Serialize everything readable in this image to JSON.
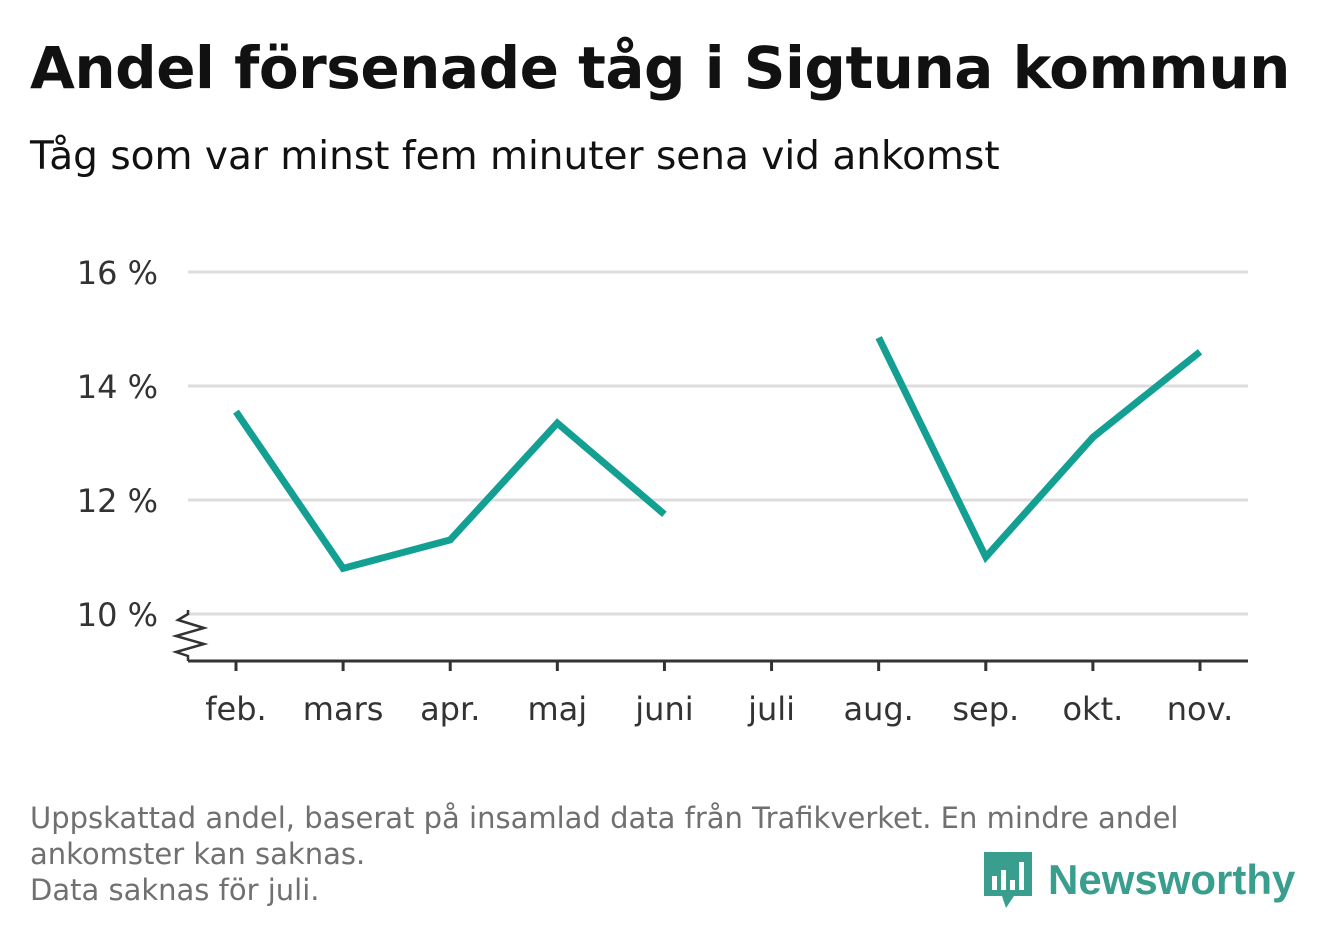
{
  "title": "Andel försenade tåg i Sigtuna kommun",
  "subtitle": "Tåg som var minst fem minuter sena vid ankomst",
  "footnote": {
    "line1": "Uppskattad andel, baserat på insamlad data från Trafikverket. En mindre andel",
    "line2": "ankomster kan saknas.",
    "line3": "Data saknas för juli."
  },
  "logo": {
    "text": "Newsworthy",
    "icon": "newsworthy-bar-chart-icon",
    "color": "#3a9e8f"
  },
  "chart_data": {
    "type": "line",
    "categories": [
      "feb.",
      "mars",
      "apr.",
      "maj",
      "juni",
      "juli",
      "aug.",
      "sep.",
      "okt.",
      "nov."
    ],
    "series": [
      {
        "values": [
          13.55,
          10.8,
          11.3,
          13.35,
          11.75,
          null,
          14.85,
          11.0,
          13.1,
          14.6
        ],
        "color": "#13a093"
      }
    ],
    "y_ticks": [
      10,
      12,
      14,
      16
    ],
    "y_tick_labels": [
      "10 %",
      "12 %",
      "14 %",
      "16 %"
    ],
    "ylim": [
      9.2,
      16
    ],
    "y_axis_break": true,
    "grid": true,
    "gridline_color": "#dddddd",
    "xlabel": "",
    "ylabel": ""
  }
}
